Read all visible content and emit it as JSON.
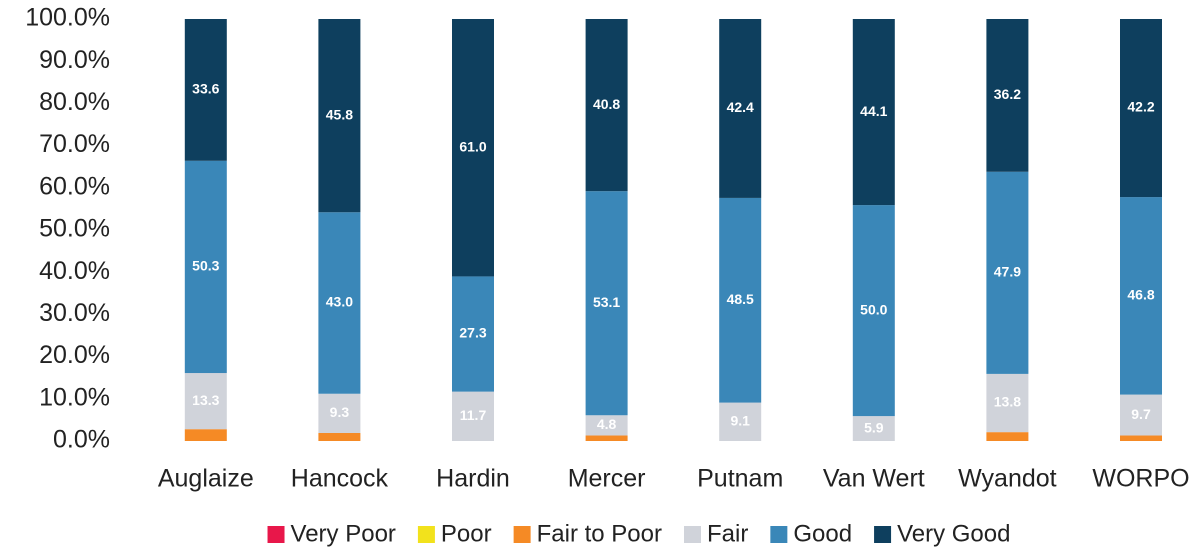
{
  "chart_data": {
    "type": "stacked_bar",
    "categories": [
      "Auglaize",
      "Hancock",
      "Hardin",
      "Mercer",
      "Putnam",
      "Van Wert",
      "Wyandot",
      "WORPO"
    ],
    "series": [
      {
        "name": "Very Poor",
        "color": "#e8174a",
        "values": [
          0,
          0,
          0,
          0,
          0,
          0,
          0,
          0
        ]
      },
      {
        "name": "Poor",
        "color": "#f2e21c",
        "values": [
          0,
          0,
          0,
          0,
          0,
          0,
          0,
          0
        ]
      },
      {
        "name": "Fair to Poor",
        "color": "#f58a25",
        "values": [
          2.8,
          1.9,
          0,
          1.3,
          0,
          0,
          2.1,
          1.3
        ]
      },
      {
        "name": "Fair",
        "color": "#d0d3da",
        "values": [
          13.3,
          9.3,
          11.7,
          4.8,
          9.1,
          5.9,
          13.8,
          9.7
        ],
        "value_labels": [
          "13.3",
          "9.3",
          "11.7",
          "4.8",
          "9.1",
          "5.9",
          "13.8",
          "9.7"
        ]
      },
      {
        "name": "Good",
        "color": "#3a87b8",
        "values": [
          50.3,
          43.0,
          27.3,
          53.1,
          48.5,
          50.0,
          47.9,
          46.8
        ],
        "value_labels": [
          "50.3",
          "43.0",
          "27.3",
          "53.1",
          "48.5",
          "50.0",
          "47.9",
          "46.8"
        ]
      },
      {
        "name": "Very Good",
        "color": "#0e3f5e",
        "values": [
          33.6,
          45.8,
          61.0,
          40.8,
          42.4,
          44.1,
          36.2,
          42.2
        ],
        "value_labels": [
          "33.6",
          "45.8",
          "61.0",
          "40.8",
          "42.4",
          "44.1",
          "36.2",
          "42.2"
        ]
      }
    ],
    "ylim": [
      0,
      100
    ],
    "yticks": [
      {
        "value": 0,
        "label": "0.0%"
      },
      {
        "value": 10,
        "label": "10.0%"
      },
      {
        "value": 20,
        "label": "20.0%"
      },
      {
        "value": 30,
        "label": "30.0%"
      },
      {
        "value": 40,
        "label": "40.0%"
      },
      {
        "value": 50,
        "label": "50.0%"
      },
      {
        "value": 60,
        "label": "60.0%"
      },
      {
        "value": 70,
        "label": "70.0%"
      },
      {
        "value": 80,
        "label": "80.0%"
      },
      {
        "value": 90,
        "label": "90.0%"
      },
      {
        "value": 100,
        "label": "100.0%"
      }
    ],
    "legend": "bottom"
  }
}
